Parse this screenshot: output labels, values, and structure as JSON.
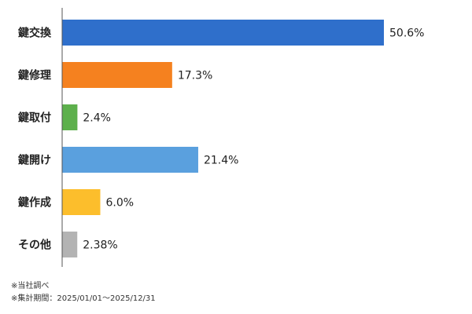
{
  "chart_data": {
    "type": "bar",
    "orientation": "horizontal",
    "categories": [
      "鍵交換",
      "鍵修理",
      "鍵取付",
      "鍵開け",
      "鍵作成",
      "その他"
    ],
    "values": [
      50.6,
      17.3,
      2.4,
      21.4,
      6.0,
      2.38
    ],
    "value_labels": [
      "50.6%",
      "17.3%",
      "2.4%",
      "21.4%",
      "6.0%",
      "2.38%"
    ],
    "colors": [
      "#2f6fcb",
      "#f5811f",
      "#5db04c",
      "#5aa0de",
      "#fcbe2c",
      "#b3b3b3"
    ],
    "xlim": [
      0,
      63
    ],
    "grid": false,
    "legend": "none"
  },
  "notes": [
    "※当社調べ",
    "※集計期間：2025/01/01～2025/12/31"
  ]
}
